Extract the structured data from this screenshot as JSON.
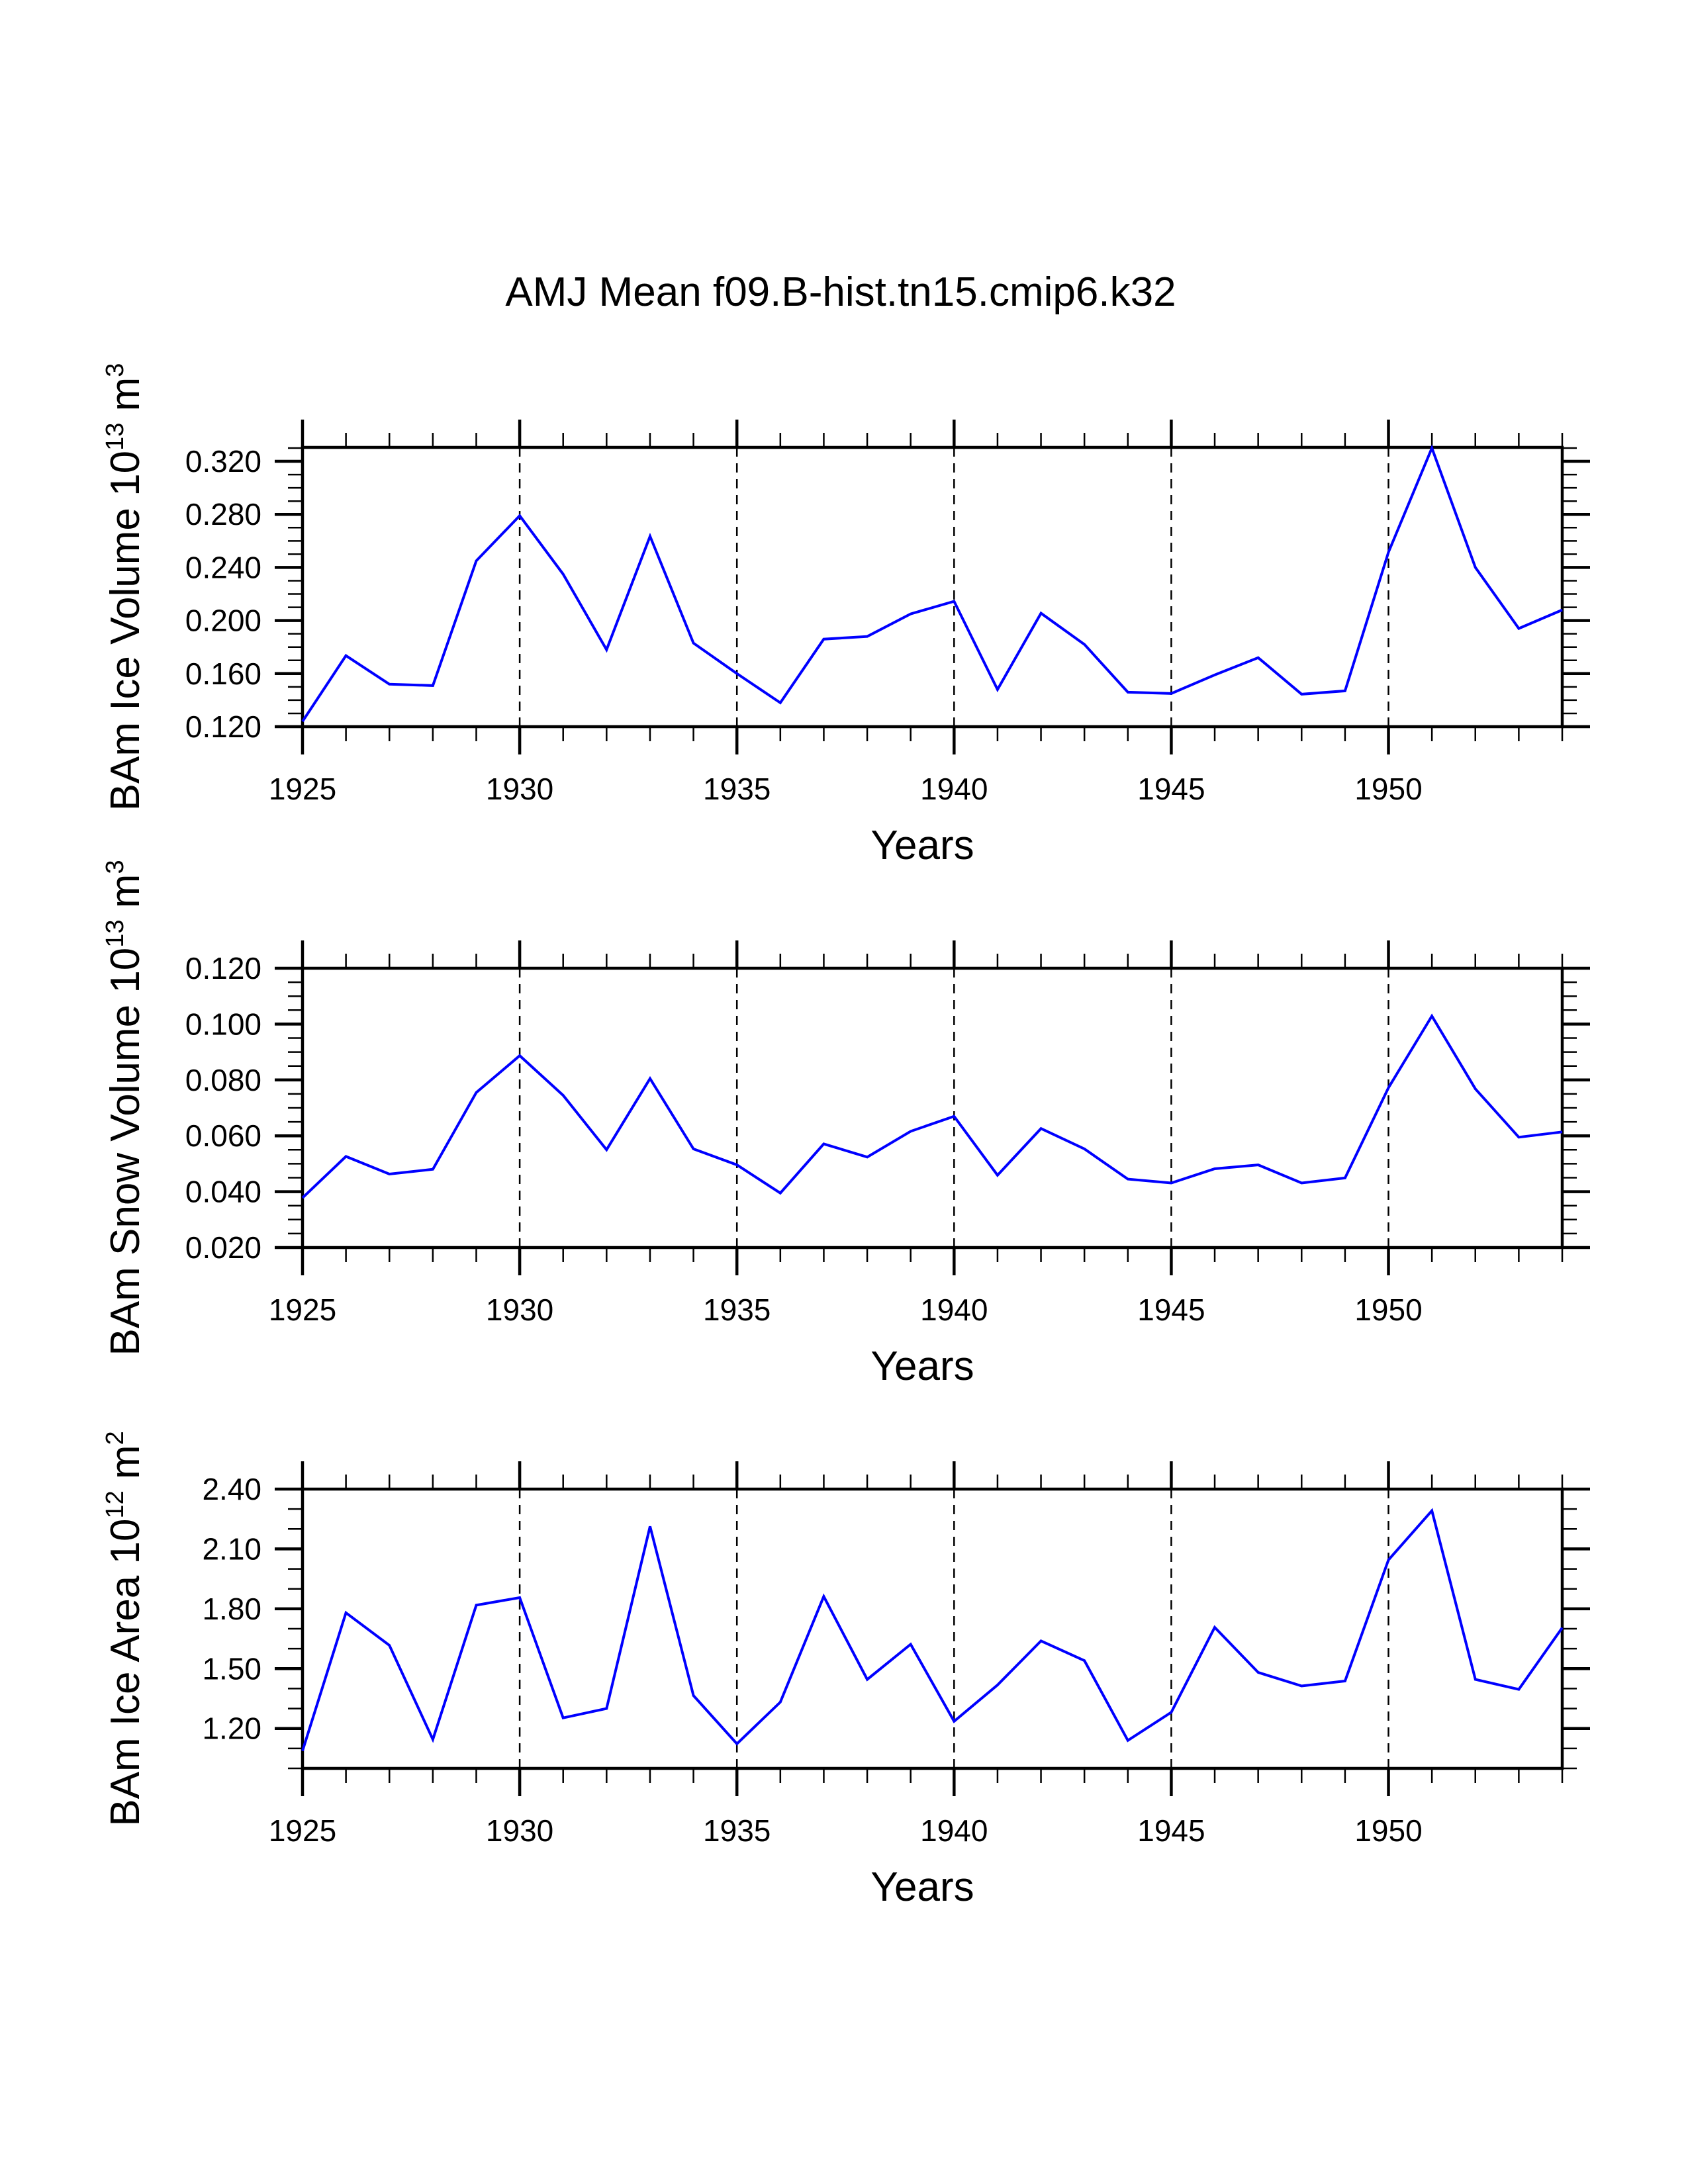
{
  "chart_data": {
    "type": "line",
    "title": "AMJ Mean f09.B-hist.tn15.cmip6.k32",
    "line_color": "#0000ff",
    "x": [
      1925,
      1926,
      1927,
      1928,
      1929,
      1930,
      1931,
      1932,
      1933,
      1934,
      1935,
      1936,
      1937,
      1938,
      1939,
      1940,
      1941,
      1942,
      1943,
      1944,
      1945,
      1946,
      1947,
      1948,
      1949,
      1950,
      1951,
      1952,
      1953,
      1954
    ],
    "xlim": [
      1925,
      1954
    ],
    "x_ticks": [
      1925,
      1930,
      1935,
      1940,
      1945,
      1950
    ],
    "x_tick_labels": [
      "1925",
      "1930",
      "1935",
      "1940",
      "1945",
      "1950"
    ],
    "x_minor_step": 1,
    "grid": "dashed vertical lines at major x ticks",
    "legend": "none",
    "panels": [
      {
        "name": "ice-volume",
        "xlabel": "Years",
        "ylabel_text": "BAm Ice Volume 10",
        "ylabel_exp": "13",
        "ylabel_unit": " m",
        "ylabel_unit_exp": "3",
        "ylim": [
          0.12,
          0.3305
        ],
        "y_ticks": [
          0.12,
          0.16,
          0.2,
          0.24,
          0.28,
          0.32
        ],
        "y_tick_labels": [
          "0.120",
          "0.160",
          "0.200",
          "0.240",
          "0.280",
          "0.320"
        ],
        "y_minor_step": 0.01,
        "values": [
          0.124,
          0.1735,
          0.152,
          0.151,
          0.245,
          0.279,
          0.235,
          0.178,
          0.2635,
          0.183,
          0.16,
          0.138,
          0.186,
          0.188,
          0.205,
          0.2145,
          0.148,
          0.2055,
          0.182,
          0.146,
          0.145,
          0.159,
          0.172,
          0.1445,
          0.147,
          0.2515,
          0.33,
          0.24,
          0.194,
          0.208
        ]
      },
      {
        "name": "snow-volume",
        "xlabel": "Years",
        "ylabel_text": "BAm Snow Volume 10",
        "ylabel_exp": "13",
        "ylabel_unit": " m",
        "ylabel_unit_exp": "3",
        "ylim": [
          0.02,
          0.12
        ],
        "y_ticks": [
          0.02,
          0.04,
          0.06,
          0.08,
          0.1,
          0.12
        ],
        "y_tick_labels": [
          "0.020",
          "0.040",
          "0.060",
          "0.080",
          "0.100",
          "0.120"
        ],
        "y_minor_step": 0.005,
        "values": [
          0.0378,
          0.0526,
          0.0463,
          0.048,
          0.0755,
          0.0887,
          0.0745,
          0.055,
          0.0805,
          0.0553,
          0.0496,
          0.0395,
          0.0571,
          0.0524,
          0.0616,
          0.067,
          0.0459,
          0.0626,
          0.0553,
          0.0445,
          0.0431,
          0.0482,
          0.0496,
          0.0431,
          0.0449,
          0.0772,
          0.1029,
          0.0768,
          0.0595,
          0.0614
        ]
      },
      {
        "name": "ice-area",
        "xlabel": "Years",
        "ylabel_text": "BAm Ice Area 10",
        "ylabel_exp": "12",
        "ylabel_unit": " m",
        "ylabel_unit_exp": "2",
        "ylim": [
          1.0,
          2.4
        ],
        "y_ticks": [
          1.2,
          1.5,
          1.8,
          2.1,
          2.4
        ],
        "y_tick_labels": [
          "1.20",
          "1.50",
          "1.80",
          "2.10",
          "2.40"
        ],
        "y_minor_step": 0.1,
        "values": [
          1.088,
          1.78,
          1.617,
          1.145,
          1.818,
          1.856,
          1.253,
          1.3,
          2.213,
          1.365,
          1.123,
          1.332,
          1.862,
          1.446,
          1.622,
          1.236,
          1.418,
          1.639,
          1.54,
          1.14,
          1.281,
          1.707,
          1.481,
          1.413,
          1.438,
          2.045,
          2.292,
          1.446,
          1.396,
          1.705
        ]
      }
    ]
  }
}
